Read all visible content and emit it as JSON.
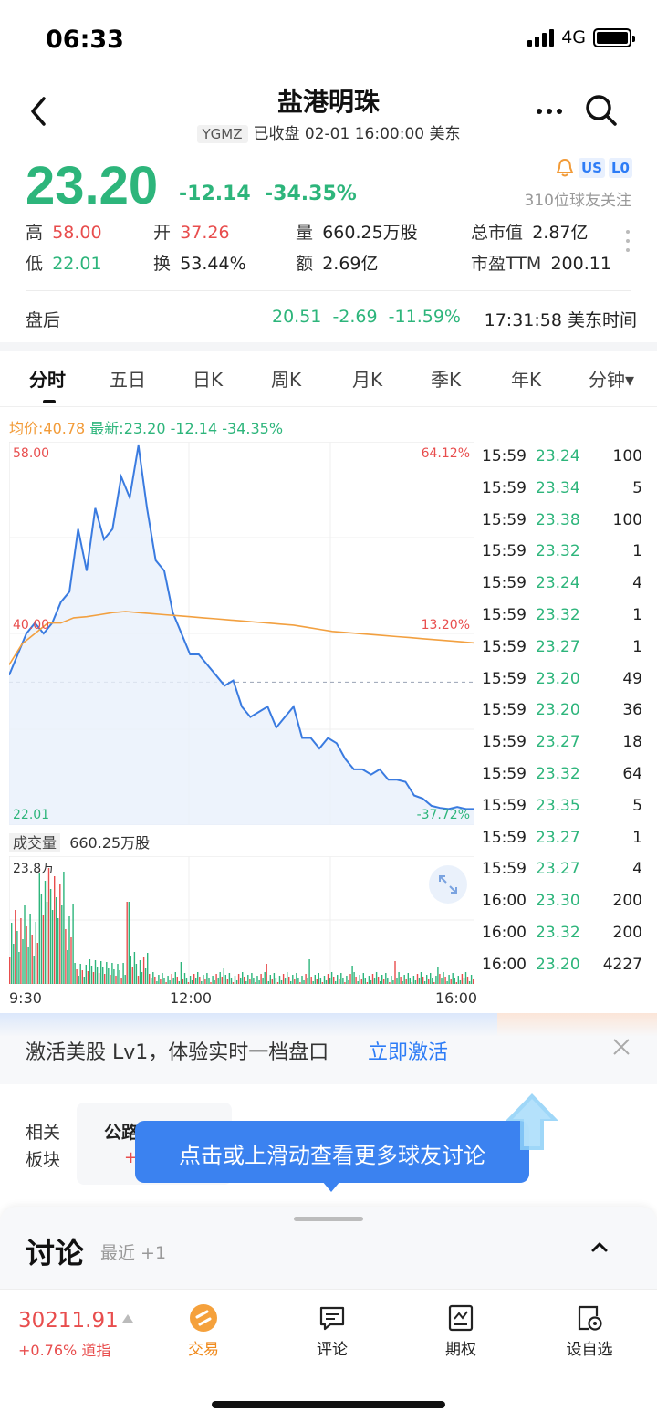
{
  "status": {
    "time": "06:33",
    "network": "4G"
  },
  "header": {
    "title": "盐港明珠",
    "ticker": "YGMZ",
    "status_text": "已收盘 02-01 16:00:00 美东"
  },
  "quote": {
    "price": "23.20",
    "change": "-12.14",
    "change_pct": "-34.35%",
    "badge_us": "US",
    "badge_lo": "L0",
    "followers": "310位球友关注",
    "stats": {
      "high_label": "高",
      "high": "58.00",
      "open_label": "开",
      "open": "37.26",
      "volume_label": "量",
      "volume": "660.25万股",
      "mcap_label": "总市值",
      "mcap": "2.87亿",
      "low_label": "低",
      "low": "22.01",
      "turnover_label": "换",
      "turnover": "53.44%",
      "amount_label": "额",
      "amount": "2.69亿",
      "pe_label": "市盈TTM",
      "pe": "200.11"
    },
    "after_hours": {
      "label": "盘后",
      "price": "20.51",
      "change": "-2.69",
      "change_pct": "-11.59%",
      "time": "17:31:58 美东时间"
    }
  },
  "tabs": [
    "分时",
    "五日",
    "日K",
    "周K",
    "月K",
    "季K",
    "年K",
    "分钟▾"
  ],
  "chart_info": {
    "avg": "均价:40.78",
    "latest": "最新:23.20 -12.14 -34.35%"
  },
  "chart_data": {
    "type": "line",
    "y_top_label": "58.00",
    "y_mid_label": "40.00",
    "y_bottom_label": "22.01",
    "pct_top_label": "64.12%",
    "pct_mid_label": "13.20%",
    "pct_bottom_label": "-37.72%",
    "x_labels": [
      "9:30",
      "12:00",
      "16:00"
    ],
    "ylim": [
      22.01,
      58.0
    ],
    "prev_close": 35.34,
    "series": [
      {
        "name": "价格",
        "color": "#3a7be0",
        "values": [
          36,
          38,
          40,
          41,
          40,
          41,
          43,
          44,
          50,
          46,
          52,
          49,
          50,
          55,
          53,
          58,
          52,
          47,
          46,
          42,
          40,
          38,
          38,
          37,
          36,
          35,
          35.5,
          33,
          32,
          32.5,
          33,
          31,
          32,
          33,
          30,
          30,
          29,
          30,
          29.5,
          28,
          27,
          27,
          26.5,
          27,
          26,
          26,
          25.8,
          24.5,
          24.2,
          23.5,
          23.3,
          23.2,
          23.4,
          23.2,
          23.2
        ]
      },
      {
        "name": "均价",
        "color": "#f2a040",
        "values": [
          37,
          39,
          40,
          41,
          41,
          41.5,
          41.6,
          41.8,
          42,
          42.1,
          42,
          41.9,
          41.8,
          41.7,
          41.6,
          41.5,
          41.4,
          41.3,
          41.2,
          41.1,
          41,
          40.9,
          40.8,
          40.6,
          40.4,
          40.2,
          40.1,
          40,
          39.9,
          39.8,
          39.7,
          39.6,
          39.5,
          39.4,
          39.3,
          39.2,
          39.1
        ]
      }
    ],
    "volume": {
      "label": "成交量",
      "total": "660.25万股",
      "max_label": "23.8万"
    }
  },
  "trades": [
    {
      "time": "15:59",
      "price": "23.24",
      "vol": "100"
    },
    {
      "time": "15:59",
      "price": "23.34",
      "vol": "5"
    },
    {
      "time": "15:59",
      "price": "23.38",
      "vol": "100"
    },
    {
      "time": "15:59",
      "price": "23.32",
      "vol": "1"
    },
    {
      "time": "15:59",
      "price": "23.24",
      "vol": "4"
    },
    {
      "time": "15:59",
      "price": "23.32",
      "vol": "1"
    },
    {
      "time": "15:59",
      "price": "23.27",
      "vol": "1"
    },
    {
      "time": "15:59",
      "price": "23.20",
      "vol": "49"
    },
    {
      "time": "15:59",
      "price": "23.20",
      "vol": "36"
    },
    {
      "time": "15:59",
      "price": "23.27",
      "vol": "18"
    },
    {
      "time": "15:59",
      "price": "23.32",
      "vol": "64"
    },
    {
      "time": "15:59",
      "price": "23.35",
      "vol": "5"
    },
    {
      "time": "15:59",
      "price": "23.27",
      "vol": "1"
    },
    {
      "time": "15:59",
      "price": "23.27",
      "vol": "4"
    },
    {
      "time": "16:00",
      "price": "23.30",
      "vol": "200"
    },
    {
      "time": "16:00",
      "price": "23.32",
      "vol": "200"
    },
    {
      "time": "16:00",
      "price": "23.20",
      "vol": "4227"
    }
  ],
  "activation": {
    "text": "激活美股 Lv1，体验实时一档盘口",
    "link": "立即激活"
  },
  "related": {
    "label_line1": "相关",
    "label_line2": "板块",
    "card_title": "公路"
  },
  "tooltip": {
    "text": "点击或上滑动查看更多球友讨论"
  },
  "discussion": {
    "title": "讨论",
    "subtitle": "最近 +1"
  },
  "bottom": {
    "index_value": "30211.91",
    "index_change": "+0.76%",
    "index_name": "道指",
    "nav": [
      "交易",
      "评论",
      "期权",
      "设自选"
    ]
  }
}
